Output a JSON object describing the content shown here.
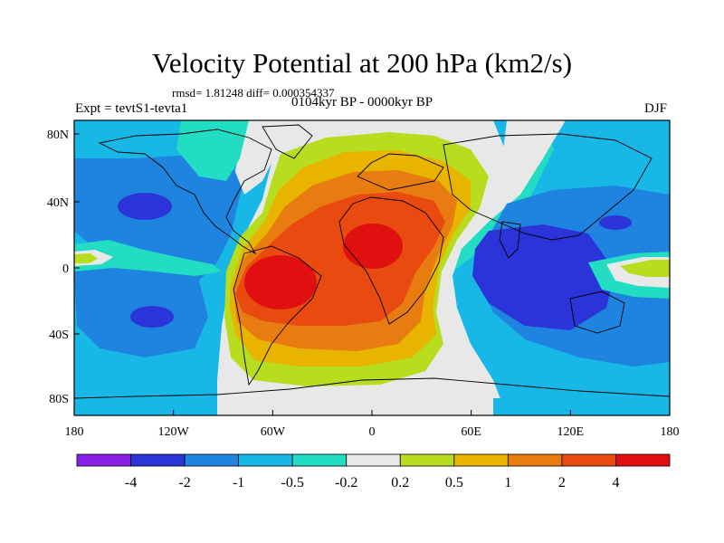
{
  "title": "Velocity Potential at 200 hPa (km2/s)",
  "stats": "rmsd= 1.81248 diff= 0.000354337",
  "period": "0104kyr BP - 0000kyr BP",
  "experiment": "Expt = tevtS1-tevta1",
  "season": "DJF",
  "lat_ticks": [
    "80N",
    "40N",
    "0",
    "40S",
    "80S"
  ],
  "lon_ticks": [
    "180",
    "120W",
    "60W",
    "0",
    "60E",
    "120E",
    "180"
  ],
  "colorbar": {
    "labels": [
      "-4",
      "-2",
      "-1",
      "-0.5",
      "-0.2",
      "0.2",
      "0.5",
      "1",
      "2",
      "4"
    ],
    "colors": [
      "#8a1fe8",
      "#2a34d8",
      "#1e84e0",
      "#18b8e6",
      "#22dcc4",
      "#e8e8e8",
      "#b8dc1e",
      "#e8b400",
      "#e87c10",
      "#e84a10",
      "#e01010"
    ]
  },
  "palette": {
    "light_blue": "#18b8e6",
    "mid_blue": "#1e84e0",
    "dark_blue": "#2a34d8",
    "cyan": "#22dcc4",
    "near_zero": "#e8e8e8",
    "yellow_green": "#b8dc1e",
    "gold": "#e8b400",
    "orange": "#e87c10",
    "red_orange": "#e84a10",
    "red": "#e01010"
  }
}
